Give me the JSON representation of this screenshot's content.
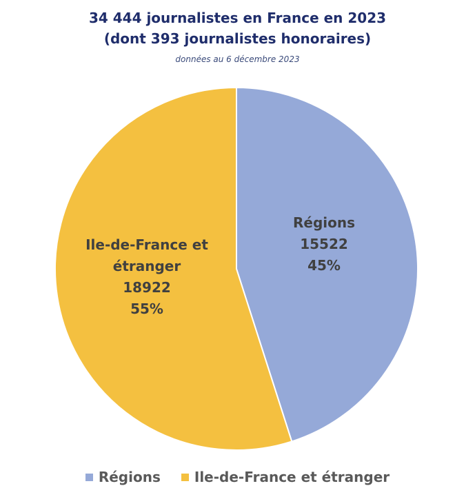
{
  "chart_data": {
    "type": "pie",
    "title": "34 444 journalistes en France en 2023",
    "title_line2": "(dont 393 journalistes honoraires)",
    "subtitle": "données au 6 décembre 2023",
    "slices": [
      {
        "name": "Régions",
        "label_lines": [
          "Régions"
        ],
        "value": 15522,
        "percent_label": "45%",
        "color": "#95a9d8"
      },
      {
        "name": "Ile-de-France et étranger",
        "label_lines": [
          "Ile-de-France et",
          "étranger"
        ],
        "value": 18922,
        "percent_label": "55%",
        "color": "#f4c040"
      }
    ],
    "legend_position": "bottom"
  }
}
